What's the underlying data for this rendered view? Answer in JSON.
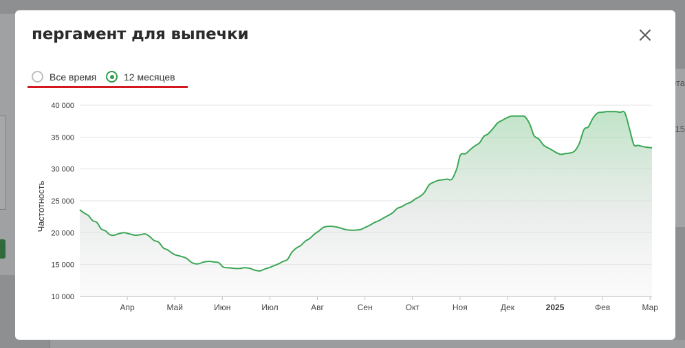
{
  "dialog": {
    "title": "пергамент для выпечки",
    "close_icon": "close-icon"
  },
  "range": {
    "options": [
      {
        "label": "Все время",
        "selected": false
      },
      {
        "label": "12 месяцев",
        "selected": true
      }
    ]
  },
  "colors": {
    "accent": "#2f9e4f",
    "line": "#3aa655",
    "highlight": "#d4181f"
  },
  "background": {
    "right_texts": [
      "ота",
      "15"
    ]
  },
  "chart_data": {
    "type": "area",
    "title": "",
    "xlabel": "",
    "ylabel": "Частотность",
    "ylim": [
      10000,
      40000
    ],
    "yticks": [
      10000,
      15000,
      20000,
      25000,
      30000,
      35000,
      40000
    ],
    "ytick_labels": [
      "10 000",
      "15 000",
      "20 000",
      "25 000",
      "30 000",
      "35 000",
      "40 000"
    ],
    "xticks": [
      {
        "label": "Апр",
        "month": 1,
        "bold": false
      },
      {
        "label": "Май",
        "month": 2,
        "bold": false
      },
      {
        "label": "Июн",
        "month": 3,
        "bold": false
      },
      {
        "label": "Июл",
        "month": 4,
        "bold": false
      },
      {
        "label": "Авг",
        "month": 5,
        "bold": false
      },
      {
        "label": "Сен",
        "month": 6,
        "bold": false
      },
      {
        "label": "Окт",
        "month": 7,
        "bold": false
      },
      {
        "label": "Ноя",
        "month": 8,
        "bold": false
      },
      {
        "label": "Дек",
        "month": 9,
        "bold": false
      },
      {
        "label": "2025",
        "month": 10,
        "bold": true
      },
      {
        "label": "Фев",
        "month": 11,
        "bold": false
      },
      {
        "label": "Мар",
        "month": 12,
        "bold": false
      }
    ],
    "grid": true,
    "series": [
      {
        "x": [
          0,
          0.09,
          0.18,
          0.27,
          0.36,
          0.45,
          0.54,
          0.63,
          0.72,
          0.8,
          0.93,
          1.05,
          1.17,
          1.29,
          1.38,
          1.47,
          1.56,
          1.66,
          1.76,
          1.85,
          1.94,
          2.02,
          2.12,
          2.24,
          2.36,
          2.48,
          2.61,
          2.73,
          2.83,
          2.92,
          3.02,
          3.12,
          3.26,
          3.38,
          3.46,
          3.58,
          3.69,
          3.79,
          3.89,
          3.98,
          4.08,
          4.18,
          4.28,
          4.37,
          4.46,
          4.56,
          4.65,
          4.75,
          4.84,
          4.94,
          5.02,
          5.12,
          5.22,
          5.3,
          5.4,
          5.5,
          5.59,
          5.69,
          5.8,
          5.91,
          6.0,
          6.11,
          6.2,
          6.3,
          6.39,
          6.49,
          6.58,
          6.68,
          6.78,
          6.87,
          6.97,
          7.06,
          7.16,
          7.25,
          7.35,
          7.44,
          7.54,
          7.64,
          7.73,
          7.83,
          7.93,
          8.01,
          8.12,
          8.21,
          8.31,
          8.41,
          8.5,
          8.59,
          8.69,
          8.79,
          8.88,
          8.98,
          9.08,
          9.17,
          9.27,
          9.37,
          9.47,
          9.56,
          9.66,
          9.75,
          9.83,
          9.93,
          10.02,
          10.12,
          10.21,
          10.31,
          10.41,
          10.51,
          10.61,
          10.7,
          10.8,
          10.9,
          11.0,
          11.09,
          11.18,
          11.27,
          11.37,
          11.47,
          11.57,
          11.66,
          11.75,
          11.85,
          11.95,
          12.04
        ],
        "values": [
          23600,
          23100,
          22700,
          21900,
          21600,
          20600,
          20300,
          19700,
          19600,
          19800,
          20000,
          19800,
          19600,
          19700,
          19800,
          19400,
          18800,
          18500,
          17600,
          17300,
          16800,
          16500,
          16300,
          16000,
          15300,
          15100,
          15400,
          15500,
          15400,
          15300,
          14600,
          14500,
          14400,
          14400,
          14500,
          14400,
          14100,
          14000,
          14300,
          14500,
          14800,
          15100,
          15500,
          15800,
          16900,
          17600,
          18000,
          18700,
          19100,
          19800,
          20200,
          20800,
          21000,
          21000,
          20900,
          20700,
          20500,
          20400,
          20400,
          20500,
          20800,
          21200,
          21600,
          21900,
          22300,
          22700,
          23100,
          23800,
          24100,
          24500,
          24800,
          25300,
          25700,
          26300,
          27500,
          27900,
          28200,
          28300,
          28400,
          28400,
          30000,
          32200,
          32400,
          33000,
          33600,
          34100,
          35100,
          35500,
          36300,
          37200,
          37600,
          38000,
          38300,
          38300,
          38300,
          38200,
          37000,
          35200,
          34700,
          33800,
          33400,
          33000,
          32600,
          32300,
          32400,
          32500,
          32800,
          34000,
          36200,
          36600,
          38000,
          38800,
          38900,
          39000,
          39000,
          39000,
          38900,
          38800,
          36200,
          33800,
          33700,
          33500,
          33400,
          33300
        ]
      }
    ]
  }
}
